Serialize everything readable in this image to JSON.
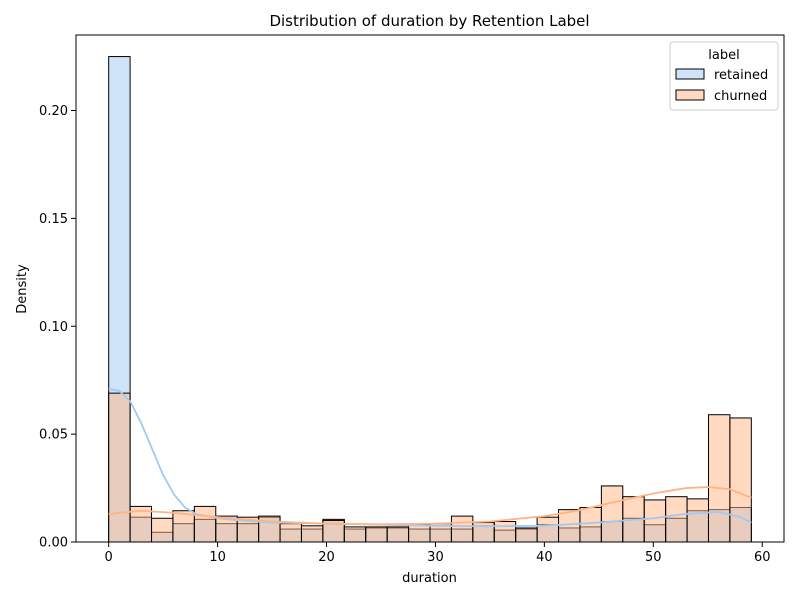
{
  "chart_data": {
    "type": "histogram",
    "title": "Distribution of duration by Retention Label",
    "xlabel": "duration",
    "ylabel": "Density",
    "xlim": [
      -3,
      62
    ],
    "ylim": [
      0,
      0.235
    ],
    "xticks": [
      0,
      10,
      20,
      30,
      40,
      50,
      60
    ],
    "yticks": [
      0.0,
      0.05,
      0.1,
      0.15,
      0.2
    ],
    "bin_start": 0,
    "bin_width": 1.9667,
    "legend": {
      "title": "label",
      "placement": "upper right",
      "entries": [
        "retained",
        "churned"
      ]
    },
    "colors": {
      "retained_fill": "#a1c9f4",
      "churned_fill": "#ffb482",
      "retained_line": "#a1c9f4",
      "churned_line": "#ffb482",
      "edge": "#000000"
    },
    "series": [
      {
        "name": "retained",
        "values": [
          0.225,
          0.0115,
          0.0045,
          0.0085,
          0.0105,
          0.0085,
          0.0085,
          0.0115,
          0.006,
          0.006,
          0.0105,
          0.006,
          0.0065,
          0.0065,
          0.006,
          0.006,
          0.006,
          0.0075,
          0.0055,
          0.006,
          0.008,
          0.0065,
          0.007,
          0.0095,
          0.011,
          0.008,
          0.011,
          0.0145,
          0.015,
          0.016
        ],
        "kde": [
          [
            0,
            0.071
          ],
          [
            1,
            0.07
          ],
          [
            2,
            0.065
          ],
          [
            3,
            0.055
          ],
          [
            4,
            0.043
          ],
          [
            5,
            0.031
          ],
          [
            6,
            0.022
          ],
          [
            7,
            0.016
          ],
          [
            8,
            0.013
          ],
          [
            10,
            0.011
          ],
          [
            12,
            0.01
          ],
          [
            15,
            0.009
          ],
          [
            20,
            0.0085
          ],
          [
            25,
            0.008
          ],
          [
            30,
            0.0075
          ],
          [
            35,
            0.0073
          ],
          [
            40,
            0.0075
          ],
          [
            45,
            0.009
          ],
          [
            50,
            0.011
          ],
          [
            53,
            0.013
          ],
          [
            56,
            0.014
          ],
          [
            58,
            0.0115
          ],
          [
            59,
            0.009
          ]
        ]
      },
      {
        "name": "churned",
        "values": [
          0.069,
          0.0165,
          0.011,
          0.0145,
          0.0165,
          0.012,
          0.0115,
          0.012,
          0.0085,
          0.0075,
          0.01,
          0.007,
          0.007,
          0.007,
          0.008,
          0.0085,
          0.012,
          0.009,
          0.0095,
          0.0065,
          0.0115,
          0.015,
          0.016,
          0.026,
          0.021,
          0.0195,
          0.021,
          0.02,
          0.059,
          0.0575
        ],
        "kde": [
          [
            0,
            0.013
          ],
          [
            3,
            0.0145
          ],
          [
            6,
            0.0135
          ],
          [
            10,
            0.0115
          ],
          [
            15,
            0.0095
          ],
          [
            20,
            0.0085
          ],
          [
            25,
            0.0082
          ],
          [
            30,
            0.0085
          ],
          [
            35,
            0.0095
          ],
          [
            40,
            0.012
          ],
          [
            43,
            0.0145
          ],
          [
            46,
            0.018
          ],
          [
            50,
            0.0225
          ],
          [
            53,
            0.025
          ],
          [
            55,
            0.0255
          ],
          [
            57,
            0.0245
          ],
          [
            59,
            0.0205
          ]
        ]
      }
    ]
  }
}
